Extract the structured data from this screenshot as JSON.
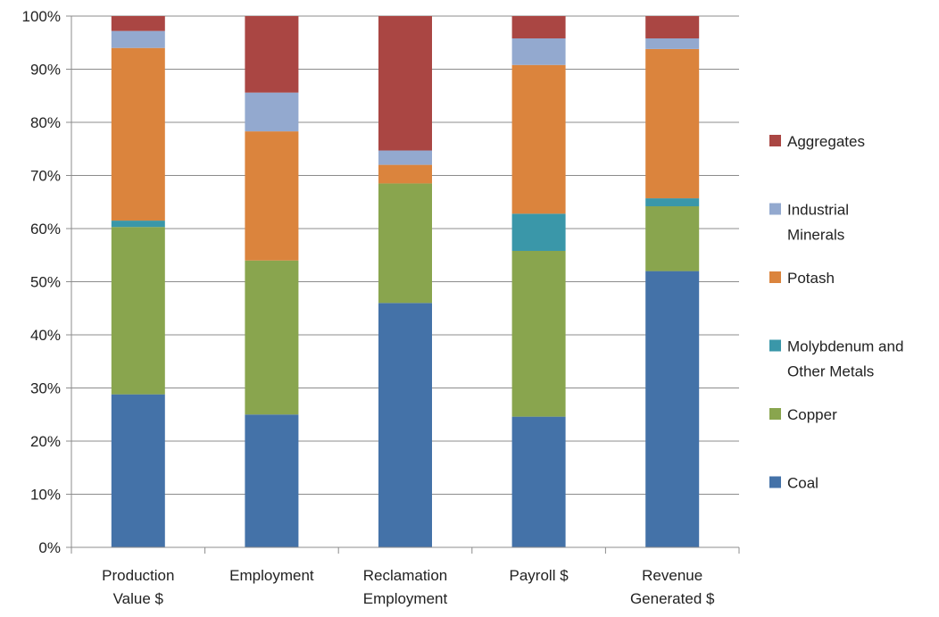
{
  "chart_data": {
    "type": "bar",
    "stacked": true,
    "percent": true,
    "categories": [
      [
        "Production",
        "Value $"
      ],
      [
        "Employment"
      ],
      [
        "Reclamation",
        "Employment"
      ],
      [
        "Payroll $"
      ],
      [
        "Revenue",
        "Generated $"
      ]
    ],
    "series": [
      {
        "name": "Coal",
        "color": "#4472a8",
        "values": [
          28.8,
          25.0,
          46.0,
          24.6,
          52.0
        ]
      },
      {
        "name": "Copper",
        "color": "#89a54e",
        "values": [
          31.5,
          29.0,
          22.5,
          31.2,
          12.2
        ]
      },
      {
        "name": "Molybdenum and Other Metals",
        "legend_lines": [
          "Molybdenum and",
          "Other Metals"
        ],
        "color": "#3a97a9",
        "values": [
          1.2,
          0.0,
          0.0,
          7.0,
          1.5
        ]
      },
      {
        "name": "Potash",
        "color": "#db843d",
        "values": [
          32.5,
          24.3,
          3.5,
          28.0,
          28.1
        ]
      },
      {
        "name": "Industrial Minerals",
        "legend_lines": [
          "Industrial",
          "Minerals"
        ],
        "color": "#93a9cf",
        "values": [
          3.2,
          7.3,
          2.7,
          5.0,
          2.0
        ]
      },
      {
        "name": "Aggregates",
        "color": "#aa4643",
        "values": [
          2.8,
          14.4,
          25.3,
          4.2,
          4.2
        ]
      }
    ],
    "yticks": [
      "0%",
      "10%",
      "20%",
      "30%",
      "40%",
      "50%",
      "60%",
      "70%",
      "80%",
      "90%",
      "100%"
    ],
    "ylim": [
      0,
      100
    ],
    "grid": true,
    "legend_position": "right"
  }
}
